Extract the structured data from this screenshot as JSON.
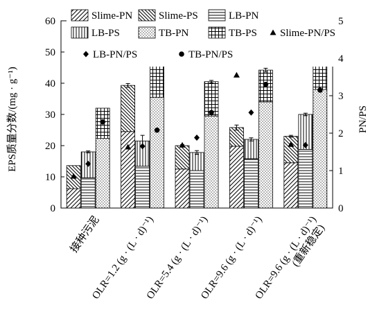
{
  "chart_data": {
    "type": "bar",
    "subtype": "stacked bar with secondary-axis scatter",
    "categories": [
      "接种污泥",
      "OLR=1.2 (g · (L · d)⁻¹)",
      "OLR=5.4 (g · (L · d)⁻¹)",
      "OLR=9.6 (g · (L · d)⁻¹)",
      "OLR=9.6 (g · (L · d)⁻¹)|(重新稳定)"
    ],
    "ylabel": "EPS质量分数/(mg · g⁻¹)",
    "y2label": "PN/PS",
    "ylim": [
      0,
      60
    ],
    "y2lim": [
      0,
      5
    ],
    "yticks": [
      "0",
      "10",
      "20",
      "30",
      "40",
      "50",
      "60"
    ],
    "y2ticks": [
      "0",
      "1",
      "2",
      "3",
      "4",
      "5"
    ],
    "legend_position": "top",
    "grid": false,
    "stacks": [
      {
        "name": "Slime",
        "series": [
          {
            "name": "Slime-PN",
            "pattern": "diag-fwd",
            "values": [
              6.2,
              24.5,
              12.5,
              19.8,
              14.5
            ]
          },
          {
            "name": "Slime-PS",
            "pattern": "diag-back",
            "values": [
              7.4,
              14.8,
              7.5,
              6.0,
              8.5
            ]
          }
        ],
        "error": [
          0.0,
          0.6,
          0.3,
          0.8,
          0.3
        ]
      },
      {
        "name": "LB",
        "series": [
          {
            "name": "LB-PN",
            "pattern": "horiz",
            "values": [
              9.7,
              13.4,
              12.0,
              15.8,
              18.8
            ]
          },
          {
            "name": "LB-PS",
            "pattern": "vert",
            "values": [
              8.3,
              8.1,
              5.8,
              6.2,
              11.2
            ]
          }
        ],
        "error": [
          0.3,
          1.8,
          0.6,
          0.5,
          0.4
        ]
      },
      {
        "name": "TB",
        "series": [
          {
            "name": "TB-PN",
            "pattern": "dots",
            "values": [
              22.3,
              35.5,
              29.5,
              34.0,
              38.0
            ]
          },
          {
            "name": "TB-PS",
            "pattern": "grid",
            "values": [
              9.7,
              16.8,
              11.0,
              10.2,
              11.8
            ]
          }
        ],
        "error": [
          0.0,
          1.8,
          0.4,
          0.6,
          0.6
        ]
      }
    ],
    "ratio_series": [
      {
        "name": "Slime-PN/PS",
        "marker": "triangle",
        "values": [
          0.85,
          1.63,
          1.68,
          3.55,
          1.7
        ]
      },
      {
        "name": "LB-PN/PS",
        "marker": "diamond",
        "values": [
          1.18,
          1.65,
          1.88,
          2.55,
          1.68
        ]
      },
      {
        "name": "TB-PN/PS",
        "marker": "circle",
        "values": [
          2.3,
          2.08,
          2.55,
          3.3,
          3.15
        ]
      }
    ]
  },
  "legend": {
    "items": [
      {
        "label": "Slime-PN",
        "kind": "swatch",
        "pattern": "diag-fwd"
      },
      {
        "label": "Slime-PS",
        "kind": "swatch",
        "pattern": "diag-back"
      },
      {
        "label": "LB-PN",
        "kind": "swatch",
        "pattern": "horiz"
      },
      {
        "label": "LB-PS",
        "kind": "swatch",
        "pattern": "vert"
      },
      {
        "label": "TB-PN",
        "kind": "swatch",
        "pattern": "dots"
      },
      {
        "label": "TB-PS",
        "kind": "swatch",
        "pattern": "grid"
      },
      {
        "label": "Slime-PN/PS",
        "kind": "marker",
        "marker": "triangle"
      },
      {
        "label": "LB-PN/PS",
        "kind": "marker",
        "marker": "diamond"
      },
      {
        "label": "TB-PN/PS",
        "kind": "marker",
        "marker": "circle"
      }
    ]
  }
}
